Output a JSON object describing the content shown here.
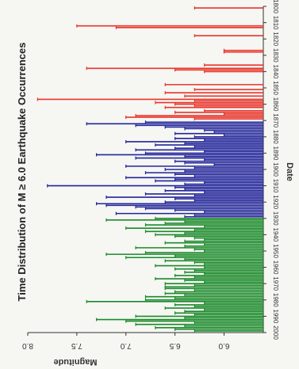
{
  "chart_data": {
    "type": "bar",
    "orientation": "horizontal (figure rotated 90° clockwise)",
    "title": "Time Distribution of M ≥ 6.0 Earthquake Occurrences",
    "xlabel": "Date",
    "ylabel": "Magnitude",
    "ylim": [
      5.6,
      8.0
    ],
    "yticks": [
      "6.0",
      "6.5",
      "7.0",
      "7.5",
      "8.0"
    ],
    "xlim": [
      1800,
      2000
    ],
    "xticks": [
      "1800",
      "1810",
      "1820",
      "1830",
      "1840",
      "1850",
      "1860",
      "1870",
      "1880",
      "1890",
      "1900",
      "1910",
      "1920",
      "1930",
      "1940",
      "1950",
      "1960",
      "1970",
      "1980",
      "1990",
      "2000"
    ],
    "grid": false,
    "legend": "none",
    "colors": {
      "early": "#e8352a",
      "middle": "#21249a",
      "late": "#1a8a2a"
    },
    "series": [
      {
        "color": "early",
        "events": [
          [
            1801,
            6.3
          ],
          [
            1812,
            7.5
          ],
          [
            1813,
            7.1
          ],
          [
            1818,
            6.3
          ],
          [
            1827,
            6.0
          ],
          [
            1828,
            6.0
          ],
          [
            1836,
            6.2
          ],
          [
            1838,
            7.4
          ],
          [
            1839,
            6.5
          ],
          [
            1840,
            6.2
          ],
          [
            1848,
            6.6
          ],
          [
            1851,
            6.3
          ],
          [
            1853,
            6.6
          ],
          [
            1855,
            6.4
          ],
          [
            1857,
            7.9
          ],
          [
            1858,
            6.3
          ],
          [
            1859,
            6.7
          ],
          [
            1860,
            6.5
          ],
          [
            1861,
            6.3
          ],
          [
            1862,
            6.6
          ],
          [
            1864,
            6.2
          ],
          [
            1865,
            6.5
          ],
          [
            1866,
            6.0
          ],
          [
            1867,
            6.9
          ],
          [
            1868,
            7.0
          ],
          [
            1869,
            6.3
          ]
        ]
      },
      {
        "color": "middle",
        "events": [
          [
            1871,
            6.8
          ],
          [
            1872,
            7.4
          ],
          [
            1873,
            6.9
          ],
          [
            1874,
            6.6
          ],
          [
            1875,
            6.4
          ],
          [
            1876,
            6.2
          ],
          [
            1877,
            6.1
          ],
          [
            1878,
            6.5
          ],
          [
            1879,
            6.0
          ],
          [
            1880,
            6.3
          ],
          [
            1881,
            6.5
          ],
          [
            1882,
            6.2
          ],
          [
            1883,
            7.0
          ],
          [
            1884,
            6.4
          ],
          [
            1885,
            6.7
          ],
          [
            1886,
            6.3
          ],
          [
            1887,
            6.5
          ],
          [
            1888,
            6.9
          ],
          [
            1889,
            6.2
          ],
          [
            1890,
            6.8
          ],
          [
            1891,
            7.3
          ],
          [
            1892,
            6.4
          ],
          [
            1893,
            6.9
          ],
          [
            1894,
            6.2
          ],
          [
            1895,
            6.5
          ],
          [
            1896,
            6.4
          ],
          [
            1897,
            6.1
          ],
          [
            1898,
            7.0
          ],
          [
            1899,
            6.3
          ],
          [
            1900,
            6.6
          ],
          [
            1901,
            6.4
          ],
          [
            1902,
            6.8
          ],
          [
            1903,
            6.5
          ],
          [
            1904,
            6.3
          ],
          [
            1905,
            7.0
          ],
          [
            1906,
            6.5
          ],
          [
            1907,
            6.7
          ],
          [
            1908,
            6.2
          ],
          [
            1909,
            6.4
          ],
          [
            1910,
            7.8
          ],
          [
            1911,
            6.5
          ],
          [
            1912,
            6.4
          ],
          [
            1913,
            6.6
          ],
          [
            1914,
            6.2
          ],
          [
            1915,
            6.8
          ],
          [
            1916,
            6.3
          ],
          [
            1917,
            7.2
          ],
          [
            1918,
            6.5
          ],
          [
            1919,
            6.3
          ],
          [
            1920,
            6.6
          ],
          [
            1921,
            7.3
          ],
          [
            1922,
            7.2
          ],
          [
            1923,
            6.9
          ],
          [
            1924,
            6.8
          ],
          [
            1925,
            6.5
          ],
          [
            1926,
            6.2
          ],
          [
            1927,
            7.1
          ],
          [
            1928,
            6.3
          ],
          [
            1929,
            6.4
          ]
        ]
      },
      {
        "color": "late",
        "events": [
          [
            1930,
            6.7
          ],
          [
            1931,
            7.2
          ],
          [
            1932,
            6.4
          ],
          [
            1933,
            6.6
          ],
          [
            1934,
            6.8
          ],
          [
            1935,
            6.2
          ],
          [
            1936,
            7.0
          ],
          [
            1937,
            6.3
          ],
          [
            1938,
            6.8
          ],
          [
            1939,
            6.4
          ],
          [
            1940,
            6.7
          ],
          [
            1941,
            6.5
          ],
          [
            1942,
            6.3
          ],
          [
            1943,
            6.2
          ],
          [
            1944,
            6.4
          ],
          [
            1945,
            6.6
          ],
          [
            1946,
            6.2
          ],
          [
            1947,
            6.4
          ],
          [
            1948,
            6.9
          ],
          [
            1949,
            6.3
          ],
          [
            1950,
            6.2
          ],
          [
            1951,
            6.8
          ],
          [
            1952,
            7.2
          ],
          [
            1953,
            6.5
          ],
          [
            1954,
            7.0
          ],
          [
            1955,
            6.4
          ],
          [
            1956,
            6.6
          ],
          [
            1957,
            6.3
          ],
          [
            1958,
            6.2
          ],
          [
            1959,
            6.7
          ],
          [
            1960,
            6.2
          ],
          [
            1961,
            6.5
          ],
          [
            1962,
            6.3
          ],
          [
            1963,
            6.4
          ],
          [
            1964,
            6.2
          ],
          [
            1965,
            6.5
          ],
          [
            1966,
            6.3
          ],
          [
            1967,
            6.7
          ],
          [
            1968,
            6.4
          ],
          [
            1969,
            6.2
          ],
          [
            1970,
            6.6
          ],
          [
            1971,
            6.3
          ],
          [
            1972,
            6.6
          ],
          [
            1973,
            6.6
          ],
          [
            1974,
            6.3
          ],
          [
            1975,
            6.5
          ],
          [
            1976,
            6.6
          ],
          [
            1977,
            6.4
          ],
          [
            1978,
            6.8
          ],
          [
            1979,
            6.5
          ],
          [
            1980,
            6.8
          ],
          [
            1981,
            7.4
          ],
          [
            1982,
            6.2
          ],
          [
            1983,
            6.5
          ],
          [
            1984,
            6.3
          ],
          [
            1985,
            6.6
          ],
          [
            1986,
            6.2
          ],
          [
            1987,
            6.4
          ],
          [
            1988,
            6.5
          ],
          [
            1989,
            6.3
          ],
          [
            1990,
            6.9
          ],
          [
            1991,
            6.4
          ],
          [
            1992,
            7.3
          ],
          [
            1993,
            7.0
          ],
          [
            1994,
            6.3
          ],
          [
            1995,
            6.9
          ],
          [
            1996,
            6.4
          ],
          [
            1997,
            6.7
          ],
          [
            1998,
            6.5
          ],
          [
            1999,
            6.3
          ]
        ]
      }
    ]
  }
}
